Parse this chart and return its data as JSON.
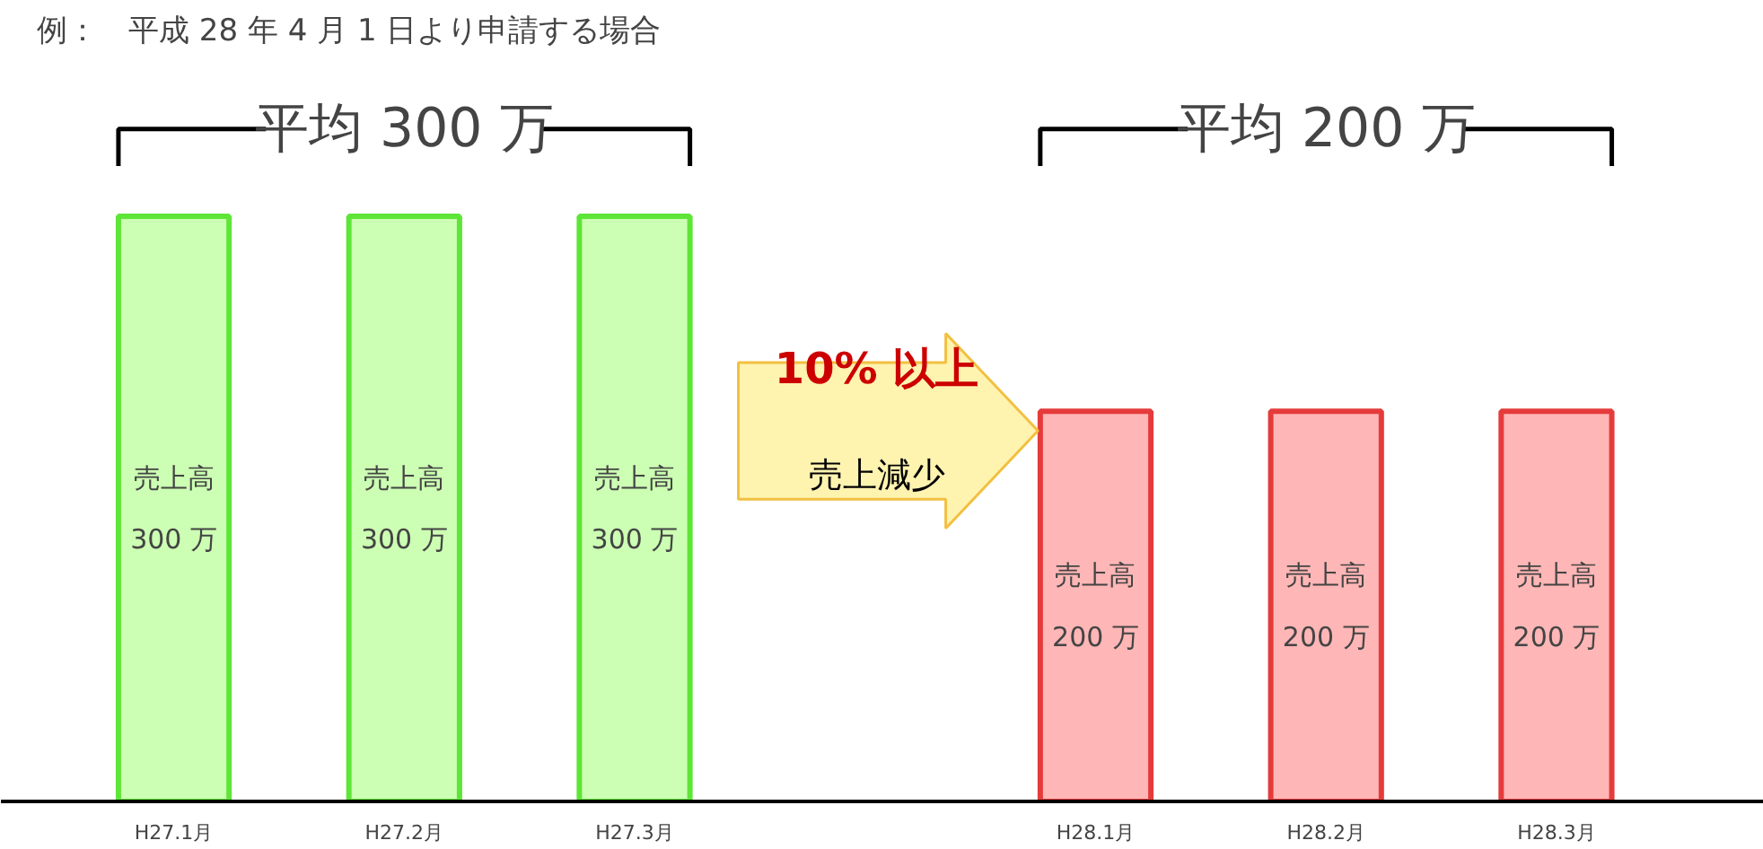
{
  "chart_data": {
    "type": "bar",
    "title": "例：　平成 28 年 4 月 1 日より申請する場合",
    "categories": [
      "H27.1月",
      "H27.2月",
      "H27.3月",
      null,
      "H28.1月",
      "H28.2月",
      "H28.3月"
    ],
    "values": [
      300,
      300,
      300,
      null,
      200,
      200,
      200
    ],
    "colors": [
      "#ccffb3",
      "#ccffb3",
      "#ccffb3",
      null,
      "#ffb6b6",
      "#ffb6b6",
      "#ffb6b6"
    ],
    "value_labels": [
      "売上高\n300 万",
      "売上高\n300 万",
      "売上高\n300 万",
      null,
      "売上高\n200 万",
      "売上高\n200 万",
      "売上高\n200 万"
    ],
    "tick_labels": "x",
    "grid": false,
    "annotations": [
      "平均 300 万",
      "平均 200 万",
      "10% 以上",
      "売上減少"
    ]
  }
}
